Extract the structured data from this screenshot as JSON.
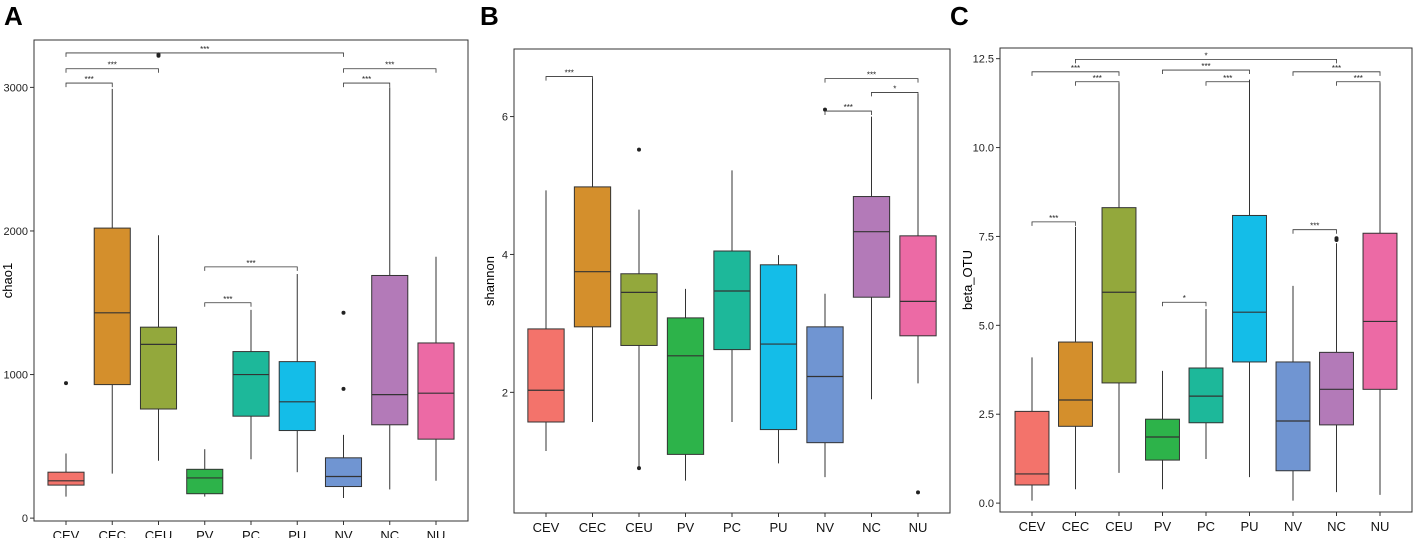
{
  "colors": {
    "CEV": "#F3736B",
    "CEC": "#D48F2C",
    "CEU": "#93A83C",
    "PV": "#2DB34A",
    "PC": "#1DB89A",
    "PU": "#14BDE8",
    "NV": "#7095D2",
    "NC": "#B37AB8",
    "NU": "#EC6AA5"
  },
  "chart_data": [
    {
      "type": "box",
      "panel_label": "A",
      "title": "",
      "xlabel": "",
      "ylabel": "chao1",
      "ylim": [
        -20,
        3330
      ],
      "yticks": [
        0,
        1000,
        2000,
        3000
      ],
      "ytick_labels": [
        "0",
        "1000",
        "2000",
        "3000"
      ],
      "categories": [
        "CEV",
        "CEC",
        "CEU",
        "PV",
        "PC",
        "PU",
        "NV",
        "NC",
        "NU"
      ],
      "boxes": [
        {
          "group": "CEV",
          "min": 150,
          "q1": 230,
          "median": 260,
          "q3": 320,
          "max": 450,
          "outliers": [
            940
          ]
        },
        {
          "group": "CEC",
          "min": 310,
          "q1": 930,
          "median": 1430,
          "q3": 2020,
          "max": 2990,
          "outliers": []
        },
        {
          "group": "CEU",
          "min": 400,
          "q1": 760,
          "median": 1210,
          "q3": 1330,
          "max": 1970,
          "outliers": [
            3220,
            3230
          ]
        },
        {
          "group": "PV",
          "min": 150,
          "q1": 170,
          "median": 280,
          "q3": 340,
          "max": 480,
          "outliers": []
        },
        {
          "group": "PC",
          "min": 410,
          "q1": 710,
          "median": 1000,
          "q3": 1160,
          "max": 1450,
          "outliers": []
        },
        {
          "group": "PU",
          "min": 320,
          "q1": 610,
          "median": 810,
          "q3": 1090,
          "max": 1700,
          "outliers": []
        },
        {
          "group": "NV",
          "min": 140,
          "q1": 220,
          "median": 290,
          "q3": 420,
          "max": 580,
          "outliers": [
            900,
            1430
          ]
        },
        {
          "group": "NC",
          "min": 200,
          "q1": 650,
          "median": 860,
          "q3": 1690,
          "max": 3000,
          "outliers": []
        },
        {
          "group": "NU",
          "min": 260,
          "q1": 550,
          "median": 870,
          "q3": 1220,
          "max": 1820,
          "outliers": []
        }
      ],
      "significance": [
        {
          "from": "CEV",
          "to": "NV",
          "label": "***",
          "y": 3240
        },
        {
          "from": "CEV",
          "to": "CEU",
          "label": "***",
          "y": 3130
        },
        {
          "from": "CEV",
          "to": "CEC",
          "label": "***",
          "y": 3030
        },
        {
          "from": "NV",
          "to": "NU",
          "label": "***",
          "y": 3130
        },
        {
          "from": "NV",
          "to": "NC",
          "label": "***",
          "y": 3030
        },
        {
          "from": "PV",
          "to": "PU",
          "label": "***",
          "y": 1750
        },
        {
          "from": "PV",
          "to": "PC",
          "label": "***",
          "y": 1500
        }
      ]
    },
    {
      "type": "box",
      "panel_label": "B",
      "title": "",
      "xlabel": "",
      "ylabel": "shannon",
      "ylim": [
        0.25,
        6.98
      ],
      "yticks": [
        2,
        4,
        6
      ],
      "ytick_labels": [
        "2",
        "4",
        "6"
      ],
      "categories": [
        "CEV",
        "CEC",
        "CEU",
        "PV",
        "PC",
        "PU",
        "NV",
        "NC",
        "NU"
      ],
      "boxes": [
        {
          "group": "CEV",
          "min": 1.15,
          "q1": 1.57,
          "median": 2.03,
          "q3": 2.92,
          "max": 4.93,
          "outliers": []
        },
        {
          "group": "CEC",
          "min": 1.57,
          "q1": 2.95,
          "median": 3.75,
          "q3": 4.98,
          "max": 6.55,
          "outliers": []
        },
        {
          "group": "CEU",
          "min": 0.9,
          "q1": 2.68,
          "median": 3.45,
          "q3": 3.72,
          "max": 4.65,
          "outliers": [
            0.9,
            5.52
          ]
        },
        {
          "group": "PV",
          "min": 0.72,
          "q1": 1.1,
          "median": 2.53,
          "q3": 3.08,
          "max": 3.5,
          "outliers": []
        },
        {
          "group": "PC",
          "min": 1.57,
          "q1": 2.62,
          "median": 3.47,
          "q3": 4.05,
          "max": 5.22,
          "outliers": []
        },
        {
          "group": "PU",
          "min": 0.97,
          "q1": 1.46,
          "median": 2.7,
          "q3": 3.85,
          "max": 3.99,
          "outliers": []
        },
        {
          "group": "NV",
          "min": 0.77,
          "q1": 1.27,
          "median": 2.23,
          "q3": 2.95,
          "max": 3.43,
          "outliers": [
            6.1
          ]
        },
        {
          "group": "NC",
          "min": 1.9,
          "q1": 3.38,
          "median": 4.33,
          "q3": 4.84,
          "max": 6.0,
          "outliers": []
        },
        {
          "group": "NU",
          "min": 2.13,
          "q1": 2.82,
          "median": 3.32,
          "q3": 4.27,
          "max": 6.33,
          "outliers": [
            0.55
          ]
        }
      ],
      "significance": [
        {
          "from": "CEV",
          "to": "CEC",
          "label": "***",
          "y": 6.58
        },
        {
          "from": "NV",
          "to": "NU",
          "label": "***",
          "y": 6.55
        },
        {
          "from": "NC",
          "to": "NU",
          "label": "*",
          "y": 6.35
        },
        {
          "from": "NV",
          "to": "NC",
          "label": "***",
          "y": 6.08
        }
      ]
    },
    {
      "type": "box",
      "panel_label": "C",
      "title": "",
      "xlabel": "",
      "ylabel": "beta_OTU",
      "ylim": [
        -0.25,
        12.8
      ],
      "yticks": [
        0,
        2.5,
        5,
        7.5,
        10,
        12.5
      ],
      "ytick_labels": [
        "0.0",
        "2.5",
        "5.0",
        "7.5",
        "10.0",
        "12.5"
      ],
      "categories": [
        "CEV",
        "CEC",
        "CEU",
        "PV",
        "PC",
        "PU",
        "NV",
        "NC",
        "NU"
      ],
      "boxes": [
        {
          "group": "CEV",
          "min": 0.07,
          "q1": 0.51,
          "median": 0.82,
          "q3": 2.58,
          "max": 4.1,
          "outliers": []
        },
        {
          "group": "CEC",
          "min": 0.39,
          "q1": 2.16,
          "median": 2.9,
          "q3": 4.53,
          "max": 7.77,
          "outliers": []
        },
        {
          "group": "CEU",
          "min": 0.85,
          "q1": 3.38,
          "median": 5.93,
          "q3": 8.31,
          "max": 11.81,
          "outliers": []
        },
        {
          "group": "PV",
          "min": 0.39,
          "q1": 1.21,
          "median": 1.86,
          "q3": 2.36,
          "max": 3.72,
          "outliers": []
        },
        {
          "group": "PC",
          "min": 1.24,
          "q1": 2.26,
          "median": 3.01,
          "q3": 3.8,
          "max": 5.46,
          "outliers": []
        },
        {
          "group": "PU",
          "min": 0.73,
          "q1": 3.97,
          "median": 5.37,
          "q3": 8.09,
          "max": 11.91,
          "outliers": []
        },
        {
          "group": "NV",
          "min": 0.07,
          "q1": 0.91,
          "median": 2.31,
          "q3": 3.97,
          "max": 6.11,
          "outliers": []
        },
        {
          "group": "NC",
          "min": 0.31,
          "q1": 2.2,
          "median": 3.2,
          "q3": 4.24,
          "max": 7.31,
          "outliers": [
            7.4,
            7.45
          ]
        },
        {
          "group": "NU",
          "min": 0.23,
          "q1": 3.2,
          "median": 5.11,
          "q3": 7.59,
          "max": 11.81,
          "outliers": []
        }
      ],
      "significance": [
        {
          "from": "CEC",
          "to": "NC",
          "label": "*",
          "y": 12.48
        },
        {
          "from": "CEV",
          "to": "CEU",
          "label": "***",
          "y": 12.13
        },
        {
          "from": "CEC",
          "to": "CEU",
          "label": "***",
          "y": 11.85
        },
        {
          "from": "PV",
          "to": "PU",
          "label": "***",
          "y": 12.18
        },
        {
          "from": "PC",
          "to": "PU",
          "label": "***",
          "y": 11.85
        },
        {
          "from": "NV",
          "to": "NU",
          "label": "***",
          "y": 12.13
        },
        {
          "from": "NC",
          "to": "NU",
          "label": "***",
          "y": 11.85
        },
        {
          "from": "CEV",
          "to": "CEC",
          "label": "***",
          "y": 7.91
        },
        {
          "from": "PV",
          "to": "PC",
          "label": "*",
          "y": 5.65
        },
        {
          "from": "NV",
          "to": "NC",
          "label": "***",
          "y": 7.69
        }
      ]
    }
  ]
}
